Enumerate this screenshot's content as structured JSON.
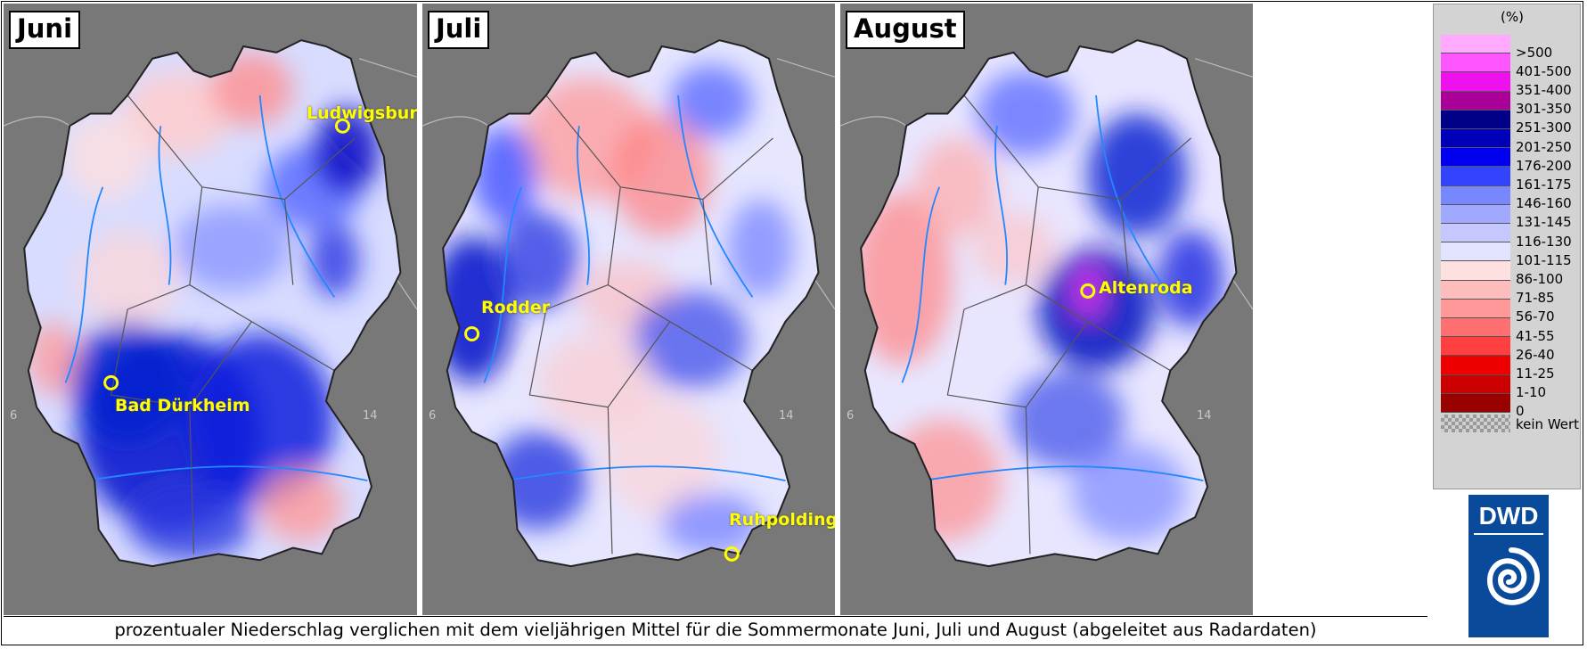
{
  "panels": [
    {
      "month": "Juni",
      "places": [
        {
          "name": "Ludwigsburg"
        },
        {
          "name": "Bad Dürkheim"
        }
      ],
      "lon_labels": [
        "6",
        "14"
      ]
    },
    {
      "month": "Juli",
      "places": [
        {
          "name": "Rodder"
        },
        {
          "name": "Ruhpolding"
        }
      ],
      "lon_labels": [
        "6",
        "14"
      ]
    },
    {
      "month": "August",
      "places": [
        {
          "name": "Altenroda"
        }
      ],
      "lon_labels": [
        "6",
        "14"
      ]
    }
  ],
  "caption": "prozentualer Niederschlag verglichen mit dem vieljährigen Mittel für die Sommermonate Juni, Juli und August (abgeleitet aus Radardaten)",
  "legend": {
    "unit": "(%)",
    "classes": [
      {
        "label": ">500",
        "color": "#ffaaff"
      },
      {
        "label": "401-500",
        "color": "#ff55ff"
      },
      {
        "label": "351-400",
        "color": "#ee11ee"
      },
      {
        "label": "301-350",
        "color": "#aa0099"
      },
      {
        "label": "251-300",
        "color": "#000088"
      },
      {
        "label": "201-250",
        "color": "#0000bb"
      },
      {
        "label": "176-200",
        "color": "#0000ee"
      },
      {
        "label": "161-175",
        "color": "#3344ff"
      },
      {
        "label": "146-160",
        "color": "#7788ff"
      },
      {
        "label": "131-145",
        "color": "#a0a8ff"
      },
      {
        "label": "116-130",
        "color": "#c4c8ff"
      },
      {
        "label": "101-115",
        "color": "#e2e4ff"
      },
      {
        "label": "86-100",
        "color": "#ffe0e0"
      },
      {
        "label": "71-85",
        "color": "#ffbcbc"
      },
      {
        "label": "56-70",
        "color": "#ff9898"
      },
      {
        "label": "41-55",
        "color": "#ff6f6f"
      },
      {
        "label": "26-40",
        "color": "#ff4040"
      },
      {
        "label": "11-25",
        "color": "#ee0000"
      },
      {
        "label": "1-10",
        "color": "#cc0000"
      },
      {
        "label": "0",
        "color": "#990000"
      }
    ],
    "no_data_label": "kein Wert"
  },
  "logo": {
    "text": "DWD",
    "color": "#0a4a9a"
  },
  "colors": {
    "background_gray": "#787878",
    "border": "#2a2a2a",
    "river": "#2288ff",
    "marker": "#ffff00"
  }
}
